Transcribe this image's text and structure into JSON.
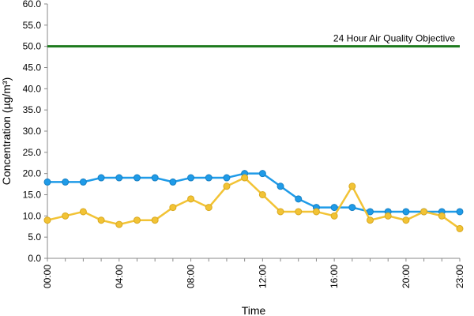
{
  "chart_data": {
    "type": "line",
    "xlabel": "Time",
    "ylabel": "Concentration (µg/m³)",
    "ylim": [
      0,
      60
    ],
    "ytick_step": 5,
    "ytick_labels": [
      "0.0",
      "5.0",
      "10.0",
      "15.0",
      "20.0",
      "25.0",
      "30.0",
      "35.0",
      "40.0",
      "45.0",
      "50.0",
      "55.0",
      "60.0"
    ],
    "x": [
      0,
      1,
      2,
      3,
      4,
      5,
      6,
      7,
      8,
      9,
      10,
      11,
      12,
      13,
      14,
      15,
      16,
      17,
      18,
      19,
      20,
      21,
      22,
      23
    ],
    "xtick_labels": [
      {
        "x": 0,
        "label": "00:00"
      },
      {
        "x": 4,
        "label": "04:00"
      },
      {
        "x": 8,
        "label": "08:00"
      },
      {
        "x": 12,
        "label": "12:00"
      },
      {
        "x": 16,
        "label": "16:00"
      },
      {
        "x": 20,
        "label": "20:00"
      },
      {
        "x": 23,
        "label": "23:00"
      }
    ],
    "grid": false,
    "series": [
      {
        "color": "#1f9be8",
        "values": [
          18,
          18,
          18,
          19,
          19,
          19,
          19,
          18,
          19,
          19,
          19,
          20,
          20,
          17,
          14,
          12,
          12,
          12,
          11,
          11,
          11,
          11,
          11,
          11
        ]
      },
      {
        "color": "#f2c335",
        "values": [
          9,
          10,
          11,
          9,
          8,
          9,
          9,
          12,
          14,
          12,
          17,
          19,
          15,
          11,
          11,
          11,
          10,
          17,
          9,
          10,
          9,
          11,
          10,
          7
        ]
      }
    ],
    "reference_line": {
      "value": 50,
      "label": "24 Hour Air Quality Objective",
      "color": "#1d7a1d"
    }
  }
}
